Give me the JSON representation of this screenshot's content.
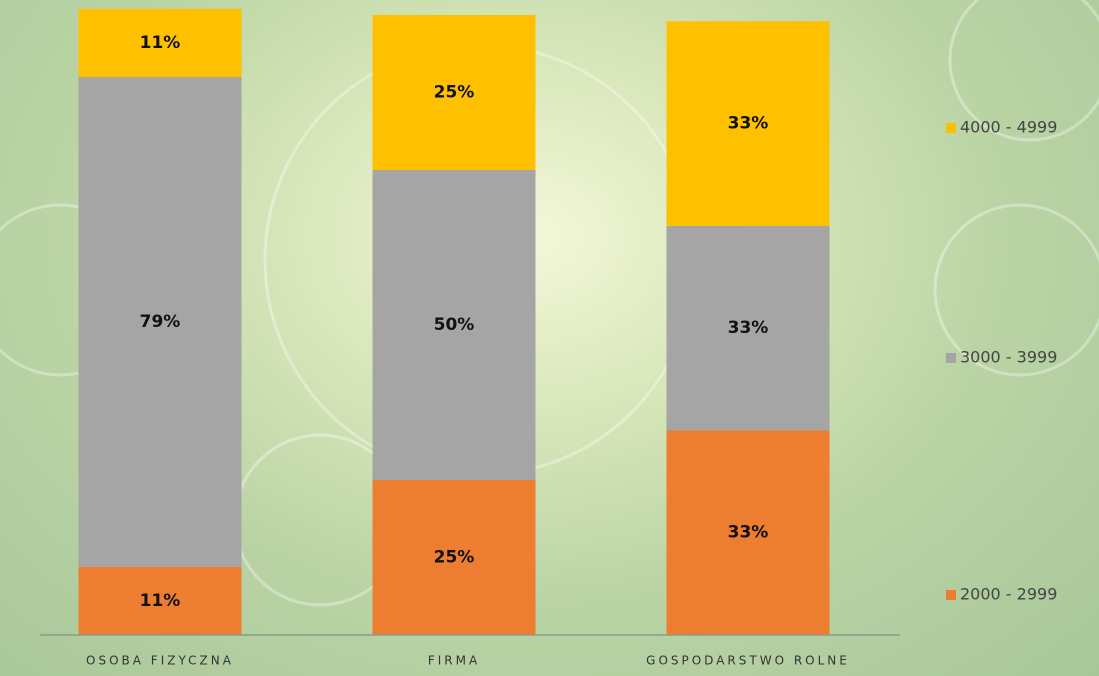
{
  "chart_data": {
    "type": "bar",
    "stacked": true,
    "categories": [
      "OSOBA FIZYCZNA",
      "FIRMA",
      "GOSPODARSTWO ROLNE"
    ],
    "series": [
      {
        "name": "2000 - 2999",
        "color": "#ED7D31",
        "values": [
          11,
          25,
          33
        ],
        "value_labels": [
          "11%",
          "25%",
          "33%"
        ]
      },
      {
        "name": "3000 - 3999",
        "color": "#A5A5A5",
        "values": [
          79,
          50,
          33
        ],
        "value_labels": [
          "79%",
          "50%",
          "33%"
        ]
      },
      {
        "name": "4000 - 4999",
        "color": "#FFC000",
        "values": [
          11,
          25,
          33
        ],
        "value_labels": [
          "11%",
          "25%",
          "33%"
        ]
      }
    ],
    "ylim": [
      0,
      100
    ],
    "legend": "right"
  }
}
